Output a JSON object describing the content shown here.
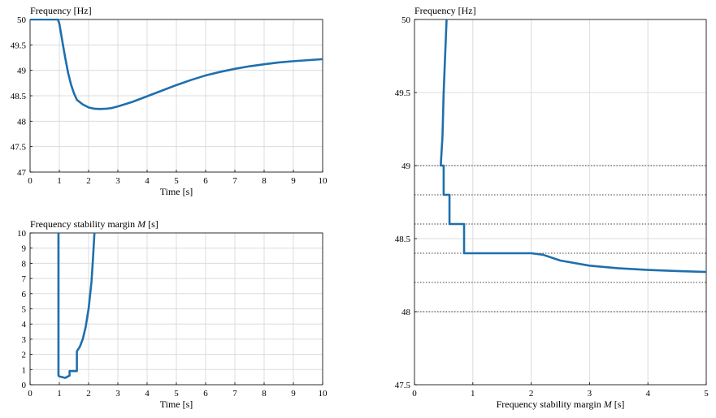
{
  "chart_data": [
    {
      "id": "freq-time",
      "type": "line",
      "title": "Frequency [Hz]",
      "xlabel": "Time [s]",
      "ylabel": "",
      "xlim": [
        0,
        10
      ],
      "ylim": [
        47,
        50
      ],
      "xticks": [
        0,
        1,
        2,
        3,
        4,
        5,
        6,
        7,
        8,
        9,
        10
      ],
      "yticks": [
        47,
        47.5,
        48,
        48.5,
        49,
        49.5,
        50
      ],
      "grid": true,
      "series": [
        {
          "x": [
            0,
            0.95,
            1.0,
            1.1,
            1.2,
            1.3,
            1.4,
            1.5,
            1.6,
            1.8,
            2.0,
            2.2,
            2.4,
            2.6,
            2.8,
            3.0,
            3.5,
            4.0,
            4.5,
            5.0,
            5.5,
            6.0,
            6.5,
            7.0,
            7.5,
            8.0,
            8.5,
            9.0,
            9.5,
            10.0
          ],
          "y": [
            50,
            50,
            49.92,
            49.58,
            49.25,
            48.95,
            48.72,
            48.55,
            48.42,
            48.33,
            48.27,
            48.245,
            48.24,
            48.245,
            48.26,
            48.29,
            48.38,
            48.49,
            48.6,
            48.71,
            48.81,
            48.9,
            48.97,
            49.03,
            49.08,
            49.12,
            49.155,
            49.18,
            49.2,
            49.22
          ]
        }
      ]
    },
    {
      "id": "margin-time",
      "type": "line",
      "title": "Frequency stability margin M [s]",
      "title_parts": [
        "Frequency stability margin ",
        "M",
        " [s]"
      ],
      "xlabel": "Time [s]",
      "ylabel": "",
      "xlim": [
        0,
        10
      ],
      "ylim": [
        0,
        10
      ],
      "xticks": [
        0,
        1,
        2,
        3,
        4,
        5,
        6,
        7,
        8,
        9,
        10
      ],
      "yticks": [
        0,
        1,
        2,
        3,
        4,
        5,
        6,
        7,
        8,
        9,
        10
      ],
      "grid": true,
      "series": [
        {
          "x": [
            0.97,
            0.97,
            1.0,
            1.1,
            1.2,
            1.3,
            1.35,
            1.35,
            1.45,
            1.45,
            1.6,
            1.6,
            1.7,
            1.8,
            1.9,
            2.0,
            2.1,
            2.15,
            2.2
          ],
          "y": [
            10,
            0.6,
            0.55,
            0.5,
            0.45,
            0.55,
            0.6,
            0.9,
            0.9,
            0.9,
            0.9,
            2.2,
            2.5,
            3.0,
            3.8,
            5.0,
            6.8,
            8.3,
            10
          ]
        }
      ]
    },
    {
      "id": "freq-margin",
      "type": "line",
      "title": "Frequency [Hz]",
      "xlabel": "Frequency stability margin M [s]",
      "xlabel_parts": [
        "Frequency stability margin ",
        "M",
        " [s]"
      ],
      "ylabel": "",
      "xlim": [
        0,
        5
      ],
      "ylim": [
        47.5,
        50
      ],
      "xticks": [
        0,
        1,
        2,
        3,
        4,
        5
      ],
      "yticks": [
        47.5,
        48,
        48.5,
        49,
        49.5,
        50
      ],
      "grid": true,
      "threshold_lines": [
        48.0,
        48.2,
        48.4,
        48.6,
        48.8,
        49.0
      ],
      "series": [
        {
          "x": [
            0.55,
            0.5,
            0.48,
            0.45,
            0.45,
            0.5,
            0.5,
            0.6,
            0.6,
            0.85,
            0.85,
            1.5,
            2.0,
            2.2,
            2.5,
            3.0,
            3.5,
            4.0,
            4.5,
            5.0
          ],
          "y": [
            50,
            49.5,
            49.2,
            49.0,
            49.0,
            49.0,
            48.8,
            48.8,
            48.6,
            48.6,
            48.4,
            48.4,
            48.4,
            48.39,
            48.35,
            48.315,
            48.297,
            48.286,
            48.278,
            48.272
          ]
        }
      ]
    }
  ]
}
